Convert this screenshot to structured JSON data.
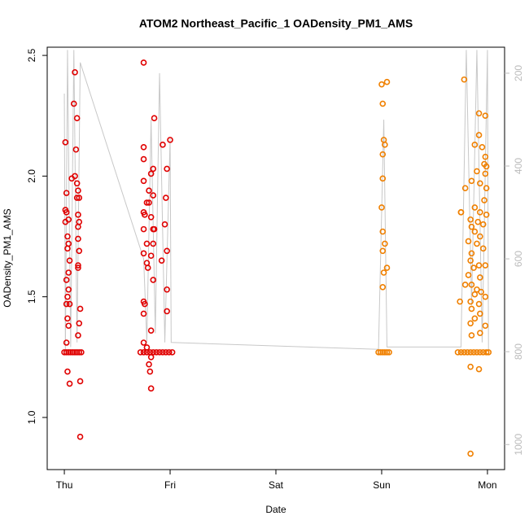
{
  "chart_data": {
    "type": "scatter",
    "title": "ATOM2 Northeast_Pacific_1 OADensity_PM1_AMS",
    "xlabel": "Date",
    "ylabel": "OADensity_PM1_AMS",
    "xlim": [
      -0.162,
      4.162
    ],
    "xticks": [
      {
        "value": 0,
        "label": "Thu"
      },
      {
        "value": 1,
        "label": "Fri"
      },
      {
        "value": 2,
        "label": "Sat"
      },
      {
        "value": 3,
        "label": "Sun"
      },
      {
        "value": 4,
        "label": "Mon"
      }
    ],
    "ylim": [
      0.784,
      2.534
    ],
    "yticks": [
      {
        "value": 1,
        "label": "1.0"
      },
      1.5,
      {
        "value": 2,
        "label": "2.0"
      },
      2.5
    ],
    "y2lim": [
      1054,
      144
    ],
    "y2ticks": [
      200,
      400,
      600,
      800,
      1000
    ],
    "series": [
      {
        "color": "#e00000",
        "x": [
          0.01,
          0.02,
          0.01,
          0.02,
          0.01,
          0.04,
          0.03,
          0.04,
          0.03,
          0.05,
          0.04,
          0.02,
          0.04,
          0.03,
          0.02,
          0.05,
          0.03,
          0.04,
          0.02,
          0.03,
          0.05,
          0.1,
          0.09,
          0.12,
          0.11,
          0.1,
          0.07,
          0.12,
          0.13,
          0.12,
          0.14,
          0.13,
          0.14,
          0.13,
          0.13,
          0.14,
          0.13,
          0.13,
          0.15,
          0.14,
          0.13,
          0.15,
          0.15,
          0.75,
          0.85,
          0.75,
          0.75,
          0.84,
          0.82,
          0.75,
          0.8,
          0.84,
          0.78,
          0.8,
          0.75,
          0.76,
          0.82,
          0.75,
          0.84,
          0.85,
          0.78,
          0.84,
          0.75,
          0.82,
          0.78,
          0.79,
          0.84,
          0.75,
          0.76,
          0.75,
          0.93,
          1.0,
          0.97,
          0.96,
          0.95,
          0.92,
          0.97,
          0.97,
          0.97,
          0.82,
          0.75,
          0.78,
          0.82,
          0.8,
          0.81,
          0.82,
          0,
          0.02,
          0.04,
          0.06,
          0.08,
          0.1,
          0.12,
          0.14,
          0.16,
          0.72,
          0.75,
          0.78,
          0.81,
          0.84,
          0.87,
          0.9,
          0.93,
          0.96,
          0.99,
          1.02
        ],
        "values": [
          2.14,
          1.93,
          1.86,
          1.85,
          1.81,
          1.82,
          1.75,
          1.72,
          1.7,
          1.65,
          1.6,
          1.57,
          1.53,
          1.5,
          1.47,
          1.47,
          1.41,
          1.38,
          1.31,
          1.19,
          1.14,
          2.43,
          2.3,
          2.24,
          2.11,
          2.0,
          1.99,
          1.97,
          1.94,
          1.91,
          1.91,
          1.84,
          1.81,
          1.79,
          1.74,
          1.69,
          1.63,
          1.62,
          1.45,
          1.39,
          1.34,
          1.15,
          0.92,
          2.47,
          2.24,
          2.12,
          2.07,
          2.03,
          2.01,
          1.98,
          1.94,
          1.92,
          1.89,
          1.89,
          1.85,
          1.84,
          1.83,
          1.78,
          1.78,
          1.78,
          1.72,
          1.72,
          1.68,
          1.67,
          1.64,
          1.62,
          1.57,
          1.48,
          1.47,
          1.43,
          2.13,
          2.15,
          2.03,
          1.91,
          1.8,
          1.65,
          1.69,
          1.53,
          1.44,
          1.36,
          1.31,
          1.29,
          1.25,
          1.22,
          1.19,
          1.12,
          1.27,
          1.27,
          1.27,
          1.27,
          1.27,
          1.27,
          1.27,
          1.27,
          1.27,
          1.27,
          1.27,
          1.27,
          1.27,
          1.27,
          1.27,
          1.27,
          1.27,
          1.27,
          1.27,
          1.27
        ]
      },
      {
        "color": "#f08000",
        "x": [
          3.0,
          3.05,
          3.01,
          3.02,
          3.03,
          3.01,
          3.01,
          3.0,
          3.01,
          3.03,
          3.01,
          3.05,
          3.02,
          3.01,
          3.78,
          3.92,
          3.98,
          3.92,
          3.88,
          3.95,
          3.98,
          3.97,
          3.99,
          3.98,
          3.9,
          3.85,
          3.93,
          3.79,
          3.99,
          3.97,
          3.88,
          3.75,
          3.93,
          3.99,
          3.84,
          3.91,
          3.96,
          3.85,
          3.88,
          3.93,
          3.82,
          3.9,
          3.96,
          3.85,
          3.84,
          3.92,
          3.98,
          3.87,
          3.82,
          3.93,
          3.85,
          3.9,
          3.79,
          3.94,
          3.88,
          3.74,
          3.84,
          3.92,
          3.98,
          3.85,
          3.93,
          3.88,
          3.84,
          3.98,
          3.93,
          3.85,
          3.75,
          3.84,
          3.92,
          3.84,
          2.97,
          2.99,
          3.01,
          3.03,
          3.05,
          3.07,
          3.72,
          3.75,
          3.78,
          3.81,
          3.84,
          3.87,
          3.9,
          3.93,
          3.96,
          3.99,
          4.01
        ],
        "values": [
          2.38,
          2.39,
          2.3,
          2.15,
          2.13,
          2.09,
          1.99,
          1.87,
          1.77,
          1.72,
          1.69,
          1.62,
          1.6,
          1.54,
          2.4,
          2.26,
          2.25,
          2.17,
          2.13,
          2.12,
          2.08,
          2.05,
          2.04,
          2.01,
          2.02,
          1.98,
          1.97,
          1.95,
          1.95,
          1.9,
          1.87,
          1.85,
          1.85,
          1.84,
          1.82,
          1.81,
          1.8,
          1.79,
          1.77,
          1.75,
          1.73,
          1.72,
          1.7,
          1.68,
          1.65,
          1.63,
          1.63,
          1.62,
          1.59,
          1.58,
          1.55,
          1.53,
          1.55,
          1.52,
          1.51,
          1.48,
          1.48,
          1.47,
          1.5,
          1.45,
          1.43,
          1.41,
          1.39,
          1.38,
          1.35,
          1.34,
          1.85,
          1.21,
          1.2,
          0.85,
          1.27,
          1.27,
          1.27,
          1.27,
          1.27,
          1.27,
          1.27,
          1.27,
          1.27,
          1.27,
          1.27,
          1.27,
          1.27,
          1.27,
          1.27,
          1.27,
          1.27
        ]
      },
      {
        "type": "line",
        "axis": "y2",
        "color": "#c8c8c8",
        "x": [
          0,
          0.01,
          0.03,
          0.06,
          0.09,
          0.12,
          0.15,
          0.75,
          0.78,
          0.82,
          0.86,
          0.9,
          0.95,
          1.0,
          1.01,
          2.97,
          3.02,
          3.05,
          3.75,
          3.8,
          3.85,
          3.9,
          3.95,
          4.0,
          4.01
        ],
        "values": [
          244,
          800,
          150,
          790,
          150,
          780,
          177,
          600,
          780,
          300,
          760,
          200,
          780,
          340,
          780,
          795,
          300,
          790,
          790,
          150,
          700,
          150,
          780,
          150,
          800
        ]
      }
    ]
  }
}
